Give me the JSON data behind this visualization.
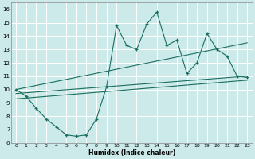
{
  "xlabel": "Humidex (Indice chaleur)",
  "bg_color": "#cceaea",
  "grid_color": "#ffffff",
  "line_color": "#1a6e60",
  "xlim": [
    -0.5,
    23.5
  ],
  "ylim": [
    6,
    16.5
  ],
  "xticks": [
    0,
    1,
    2,
    3,
    4,
    5,
    6,
    7,
    8,
    9,
    10,
    11,
    12,
    13,
    14,
    15,
    16,
    17,
    18,
    19,
    20,
    21,
    22,
    23
  ],
  "yticks": [
    6,
    7,
    8,
    9,
    10,
    11,
    12,
    13,
    14,
    15,
    16
  ],
  "line1_x": [
    0,
    1,
    2,
    3,
    4,
    5,
    6,
    7,
    8,
    9,
    10,
    11,
    12,
    13,
    14,
    15,
    16,
    17,
    18,
    19,
    20,
    21,
    22,
    23
  ],
  "line1_y": [
    10,
    9.5,
    8.6,
    7.8,
    7.2,
    6.6,
    6.5,
    6.6,
    7.8,
    10.2,
    14.8,
    13.3,
    13.0,
    14.9,
    15.8,
    13.3,
    13.7,
    11.2,
    12.0,
    14.2,
    13.0,
    12.5,
    11.0,
    10.9
  ],
  "line2_x": [
    0,
    23
  ],
  "line2_y": [
    10.0,
    13.5
  ],
  "line3_x": [
    0,
    23
  ],
  "line3_y": [
    9.7,
    11.0
  ],
  "line4_x": [
    0,
    23
  ],
  "line4_y": [
    9.3,
    10.7
  ]
}
